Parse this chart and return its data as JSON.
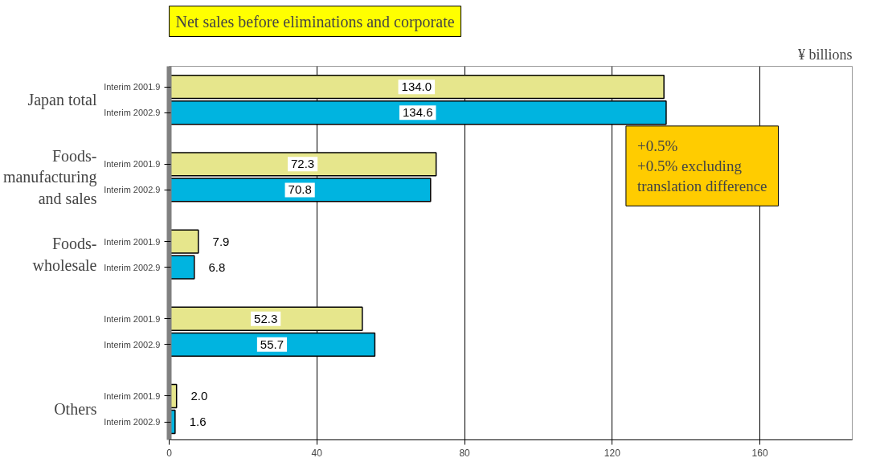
{
  "chart_data": {
    "type": "bar",
    "orientation": "horizontal",
    "subtitle": "Net sales before eliminations and corporate",
    "categories": [
      "Japan total",
      "Foods-manufacturing and sales",
      "Foods-wholesale",
      null,
      "Others"
    ],
    "series": [
      {
        "name": "Interim 2001.9",
        "color": "#e6e68c",
        "values": [
          134.0,
          72.3,
          7.9,
          52.3,
          2.0
        ],
        "value_labels": [
          "134.0",
          "72.3",
          "7.9",
          "52.3",
          "2.0"
        ]
      },
      {
        "name": "Interim 2002.9",
        "color": "#00b4e0",
        "values": [
          134.6,
          70.8,
          6.8,
          55.7,
          1.6
        ],
        "value_labels": [
          "134.6",
          "70.8",
          "6.8",
          "55.7",
          "1.6"
        ]
      }
    ],
    "xlim": [
      0,
      185
    ],
    "xticks": [
      0,
      40,
      80,
      120,
      160
    ],
    "grid": "x",
    "legend": "left",
    "annotations": [
      "¥ billions",
      {
        "text": "+0.5%\n+0.5% excluding\ntranslation difference",
        "x": 134.6,
        "y": "Japan total"
      }
    ]
  }
}
